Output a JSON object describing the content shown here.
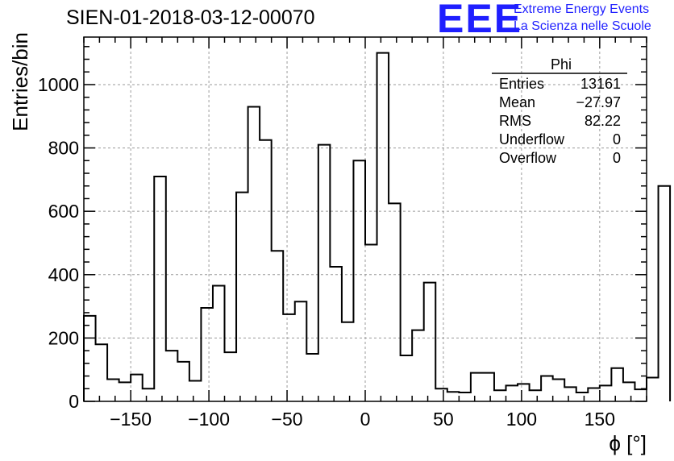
{
  "header": {
    "title": "SIEN-01-2018-03-12-00070"
  },
  "logo": {
    "mark": "EEE",
    "line1": "Extreme Energy Events",
    "line2": "La Scienza nelle Scuole",
    "color": "#1f1fff"
  },
  "stats_box": {
    "name": "Phi",
    "rows": [
      {
        "label": "Entries",
        "value": "13161"
      },
      {
        "label": "Mean",
        "value": "−27.97"
      },
      {
        "label": "RMS",
        "value": "82.22"
      },
      {
        "label": "Underflow",
        "value": "0"
      },
      {
        "label": "Overflow",
        "value": "0"
      }
    ]
  },
  "chart_data": {
    "type": "bar",
    "histogram": true,
    "xlabel": "ϕ [°]",
    "ylabel": "Entries/bin",
    "xlim": [
      -180,
      180
    ],
    "ylim": [
      0,
      1150
    ],
    "bin_width": 7.5,
    "x_ticks": [
      -150,
      -100,
      -50,
      0,
      50,
      100,
      150
    ],
    "x_tick_labels": [
      "−150",
      "−100",
      "−50",
      "0",
      "50",
      "100",
      "150"
    ],
    "y_ticks": [
      0,
      200,
      400,
      600,
      800,
      1000
    ],
    "y_tick_labels": [
      "0",
      "200",
      "400",
      "600",
      "800",
      "1000"
    ],
    "grid": true,
    "bin_edges_start": -180,
    "values": [
      270,
      180,
      70,
      60,
      85,
      40,
      710,
      160,
      125,
      65,
      295,
      365,
      155,
      660,
      930,
      825,
      475,
      275,
      315,
      150,
      810,
      425,
      250,
      760,
      495,
      1100,
      625,
      145,
      225,
      375,
      40,
      30,
      28,
      90,
      90,
      35,
      50,
      55,
      35,
      80,
      70,
      45,
      28,
      42,
      50,
      105,
      60,
      38,
      75,
      680
    ]
  }
}
